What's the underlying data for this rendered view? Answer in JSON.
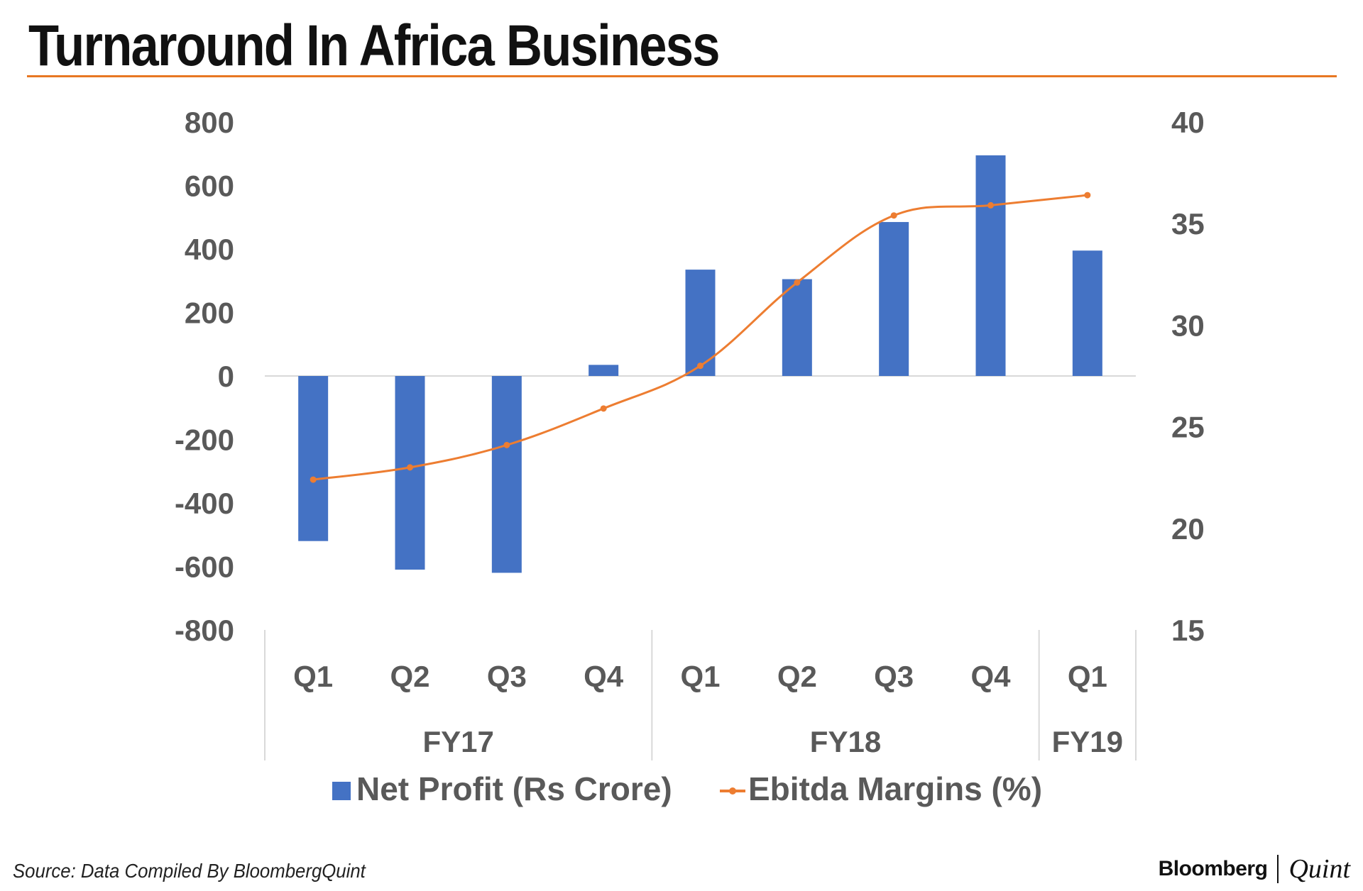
{
  "title": "Turnaround In Africa Business",
  "source": "Source: Data Compiled By BloombergQuint",
  "brand": {
    "bloomberg": "Bloomberg",
    "quint": "Quint"
  },
  "colors": {
    "bar": "#4472C4",
    "line": "#ED7D31",
    "accent_rule": "#E87722",
    "text": "#595959"
  },
  "chart_data": {
    "type": "bar",
    "categories": [
      "Q1",
      "Q2",
      "Q3",
      "Q4",
      "Q1",
      "Q2",
      "Q3",
      "Q4",
      "Q1"
    ],
    "groups": [
      {
        "label": "FY17",
        "start": 0,
        "count": 4
      },
      {
        "label": "FY18",
        "start": 4,
        "count": 4
      },
      {
        "label": "FY19",
        "start": 8,
        "count": 1
      }
    ],
    "series": [
      {
        "name": "Net Profit (Rs Crore)",
        "type": "bar",
        "axis": "left",
        "values": [
          -520,
          -610,
          -620,
          35,
          335,
          305,
          485,
          695,
          395
        ]
      },
      {
        "name": "Ebitda Margins (%)",
        "type": "line",
        "axis": "right",
        "values": [
          22.4,
          23.0,
          24.1,
          25.9,
          28.0,
          32.1,
          35.4,
          35.9,
          36.4
        ]
      }
    ],
    "left_axis": {
      "ylim": [
        -800,
        800
      ],
      "ticks": [
        800,
        600,
        400,
        200,
        0,
        -200,
        -400,
        -600,
        -800
      ]
    },
    "right_axis": {
      "ylim": [
        15,
        40
      ],
      "ticks": [
        40,
        35,
        30,
        25,
        20,
        15
      ]
    },
    "legend_position": "bottom"
  }
}
